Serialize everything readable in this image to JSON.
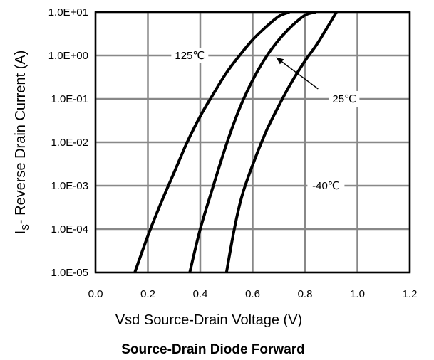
{
  "chart_data": {
    "type": "line",
    "title": "Source-Drain Diode Forward",
    "xlabel": "Vsd Source-Drain Voltage (V)",
    "ylabel_main": "I",
    "ylabel_sub": "S",
    "ylabel_rest": "- Reverse Drain Current (A)",
    "x_scale": "linear",
    "y_scale": "log",
    "xlim": [
      0.0,
      1.2
    ],
    "ylim": [
      1e-05,
      10
    ],
    "grid": true,
    "x_ticks": [
      0.0,
      0.2,
      0.4,
      0.6,
      0.8,
      1.0,
      1.2
    ],
    "x_tick_labels": [
      "0.0",
      "0.2",
      "0.4",
      "0.6",
      "0.8",
      "1.0",
      "1.2"
    ],
    "y_ticks": [
      1e-05,
      0.0001,
      0.001,
      0.01,
      0.1,
      1,
      10
    ],
    "y_tick_labels": [
      "1.0E-05",
      "1.0E-04",
      "1.0E-03",
      "1.0E-02",
      "1.0E-01",
      "1.0E+00",
      "1.0E+01"
    ],
    "series": [
      {
        "name": "125℃",
        "x": [
          0.15,
          0.2,
          0.25,
          0.3,
          0.35,
          0.4,
          0.45,
          0.5,
          0.55,
          0.6,
          0.65,
          0.7,
          0.74
        ],
        "y": [
          1e-05,
          7e-05,
          0.0004,
          0.002,
          0.01,
          0.04,
          0.13,
          0.4,
          1.0,
          2.3,
          4.5,
          8.0,
          10
        ]
      },
      {
        "name": "25℃",
        "x": [
          0.36,
          0.4,
          0.45,
          0.5,
          0.55,
          0.6,
          0.65,
          0.7,
          0.75,
          0.8,
          0.84
        ],
        "y": [
          1e-05,
          0.0001,
          0.001,
          0.009,
          0.06,
          0.27,
          0.9,
          2.3,
          4.8,
          8.5,
          10
        ]
      },
      {
        "name": "-40℃",
        "x": [
          0.5,
          0.53,
          0.56,
          0.6,
          0.65,
          0.7,
          0.75,
          0.8,
          0.85,
          0.92
        ],
        "y": [
          1e-05,
          0.0001,
          0.0006,
          0.003,
          0.017,
          0.07,
          0.25,
          0.75,
          2.0,
          10
        ]
      }
    ],
    "annotations": [
      {
        "text": "125℃",
        "x": 0.36,
        "y": 1.0
      },
      {
        "text": "25℃",
        "x": 0.95,
        "y": 0.1
      },
      {
        "text": "-40℃",
        "x": 0.88,
        "y": 0.001
      }
    ],
    "arrow": {
      "from_x": 0.85,
      "from_y": 0.17,
      "to_x": 0.69,
      "to_y": 0.9
    }
  }
}
